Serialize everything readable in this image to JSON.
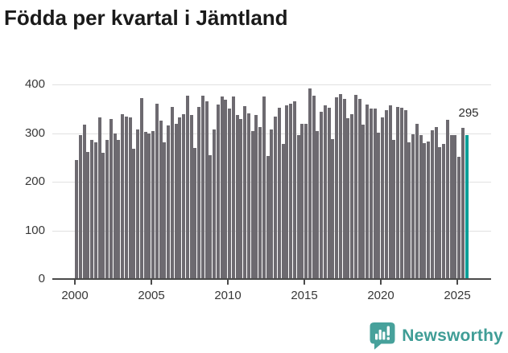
{
  "header": {
    "title": "Födda per kvartal i Jämtland"
  },
  "footer": {
    "brand": "Newsworthy"
  },
  "colors": {
    "bar": "#6d6a70",
    "highlight": "#0a9f98",
    "axis": "#4b4b4b",
    "grid": "#e1e1e1",
    "logo": "#47a19b",
    "wordmark": "#3f9d96",
    "text": "#383838",
    "title_text": "#1a1a1a"
  },
  "chart_data": {
    "type": "bar",
    "title": "Födda per kvartal i Jämtland",
    "xlabel": "",
    "ylabel": "",
    "start_period": "2000-Q1",
    "end_period": "2025-Q3",
    "periodicity": "quarterly",
    "ylim": [
      0,
      400
    ],
    "yticks": [
      0,
      100,
      200,
      300,
      400
    ],
    "x_tick_labels": [
      "2000",
      "2005",
      "2010",
      "2015",
      "2020",
      "2025"
    ],
    "grid": "horizontal",
    "legend": "none",
    "values": [
      243,
      294,
      316,
      259,
      284,
      280,
      331,
      258,
      284,
      327,
      298,
      284,
      338,
      333,
      330,
      266,
      306,
      371,
      300,
      298,
      303,
      358,
      324,
      280,
      314,
      352,
      318,
      330,
      337,
      376,
      335,
      268,
      352,
      375,
      364,
      253,
      305,
      357,
      374,
      367,
      348,
      374,
      336,
      328,
      354,
      339,
      302,
      336,
      311,
      374,
      251,
      305,
      333,
      350,
      276,
      356,
      359,
      364,
      294,
      317,
      318,
      390,
      375,
      303,
      342,
      356,
      351,
      286,
      372,
      379,
      368,
      329,
      338,
      377,
      368,
      315,
      357,
      349,
      349,
      299,
      330,
      345,
      355,
      284,
      352,
      351,
      346,
      280,
      296,
      317,
      294,
      278,
      281,
      304,
      310,
      270,
      276,
      326,
      295,
      294,
      249,
      309,
      295
    ],
    "highlight_index": 102,
    "annotation": {
      "text": "295",
      "target_period": "2025-Q3"
    }
  }
}
